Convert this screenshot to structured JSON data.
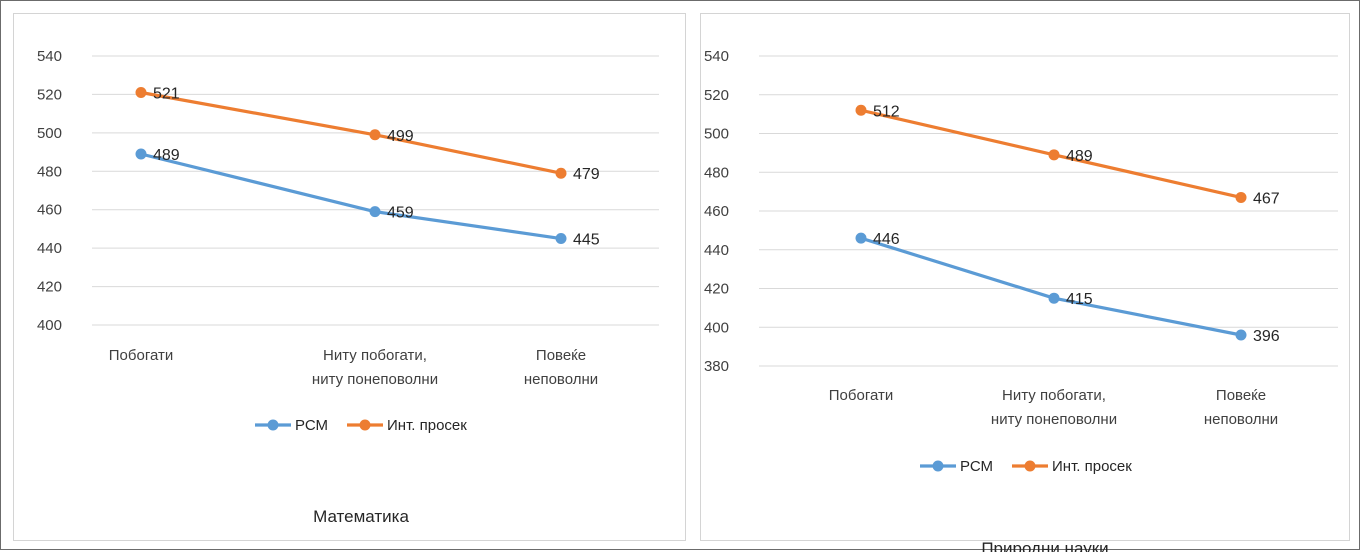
{
  "colors": {
    "rsm": "#5b9bd5",
    "int": "#ed7d31",
    "grid": "#d9d9d9"
  },
  "chart_data": [
    {
      "type": "line",
      "title": "Математика",
      "categories": [
        [
          "Побогати"
        ],
        [
          "Ниту побогати,",
          "ниту понеповолни"
        ],
        [
          "Повеќе",
          "неповолни"
        ]
      ],
      "ylim": [
        400,
        540
      ],
      "yticks": [
        400,
        420,
        440,
        460,
        480,
        500,
        520,
        540
      ],
      "grid": true,
      "legend_position": "bottom",
      "series": [
        {
          "name": "РСМ",
          "values": [
            489,
            459,
            445
          ]
        },
        {
          "name": "Инт. просек",
          "values": [
            521,
            499,
            479
          ]
        }
      ]
    },
    {
      "type": "line",
      "title": "Природни науки",
      "categories": [
        [
          "Побогати"
        ],
        [
          "Ниту побогати,",
          "ниту понеповолни"
        ],
        [
          "Повеќе",
          "неповолни"
        ]
      ],
      "ylim": [
        380,
        540
      ],
      "yticks": [
        380,
        400,
        420,
        440,
        460,
        480,
        500,
        520,
        540
      ],
      "grid": true,
      "legend_position": "bottom",
      "series": [
        {
          "name": "РСМ",
          "values": [
            446,
            415,
            396
          ]
        },
        {
          "name": "Инт. просек",
          "values": [
            512,
            489,
            467
          ]
        }
      ]
    }
  ]
}
